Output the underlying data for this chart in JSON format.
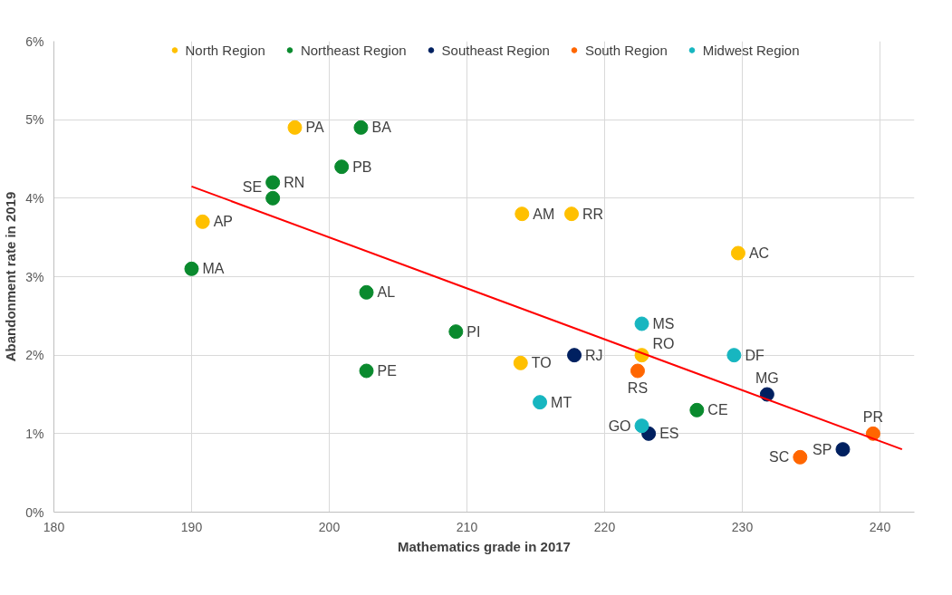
{
  "chart_data": {
    "type": "scatter",
    "xlabel": "Mathematics grade in 2017",
    "ylabel": "Abandonment rate in 2019",
    "xlim": [
      180,
      242.5
    ],
    "ylim": [
      0,
      6
    ],
    "xticks": [
      180,
      190,
      200,
      210,
      220,
      230,
      240
    ],
    "yticks": [
      {
        "value": 0,
        "label": "0%"
      },
      {
        "value": 1,
        "label": "1%"
      },
      {
        "value": 2,
        "label": "2%"
      },
      {
        "value": 3,
        "label": "3%"
      },
      {
        "value": 4,
        "label": "4%"
      },
      {
        "value": 5,
        "label": "5%"
      },
      {
        "value": 6,
        "label": "6%"
      }
    ],
    "grid": true,
    "legend": "top",
    "marker": "circle",
    "series": [
      {
        "name": "North Region",
        "color": "#ffc000",
        "x": [
          197.5,
          190.8,
          214.0,
          217.6,
          229.7,
          213.9,
          222.7
        ],
        "values": [
          4.9,
          3.7,
          3.8,
          3.8,
          3.3,
          1.9,
          2.0
        ],
        "value_labels": [
          "PA",
          "AP",
          "AM",
          "RR",
          "AC",
          "TO",
          "RO"
        ]
      },
      {
        "name": "Northeast Region",
        "color": "#0a8a2e",
        "x": [
          202.3,
          195.9,
          195.9,
          200.9,
          190.0,
          202.7,
          202.7,
          209.2,
          226.7
        ],
        "values": [
          4.9,
          4.2,
          4.0,
          4.4,
          3.1,
          2.8,
          1.8,
          2.3,
          1.3
        ],
        "value_labels": [
          "BA",
          "RN",
          "SE",
          "PB",
          "MA",
          "AL",
          "PE",
          "PI",
          "CE"
        ]
      },
      {
        "name": "Southeast Region",
        "color": "#002060",
        "x": [
          217.8,
          223.2,
          231.8,
          237.3
        ],
        "values": [
          2.0,
          1.0,
          1.5,
          0.8
        ],
        "value_labels": [
          "RJ",
          "ES",
          "MG",
          "SP"
        ]
      },
      {
        "name": "South Region",
        "color": "#ff6600",
        "x": [
          222.4,
          234.2,
          239.5
        ],
        "values": [
          1.8,
          0.7,
          1.0
        ],
        "value_labels": [
          "RS",
          "SC",
          "PR"
        ]
      },
      {
        "name": "Midwest Region",
        "color": "#17b6c0",
        "x": [
          215.3,
          222.7,
          222.7,
          229.4
        ],
        "values": [
          1.4,
          2.4,
          1.1,
          2.0
        ],
        "value_labels": [
          "MT",
          "MS",
          "GO",
          "DF"
        ]
      },
      {
        "type": "line",
        "marker": "none",
        "color": "#ff0000",
        "x": [
          190,
          241.6
        ],
        "values": [
          4.15,
          0.8
        ]
      }
    ]
  }
}
